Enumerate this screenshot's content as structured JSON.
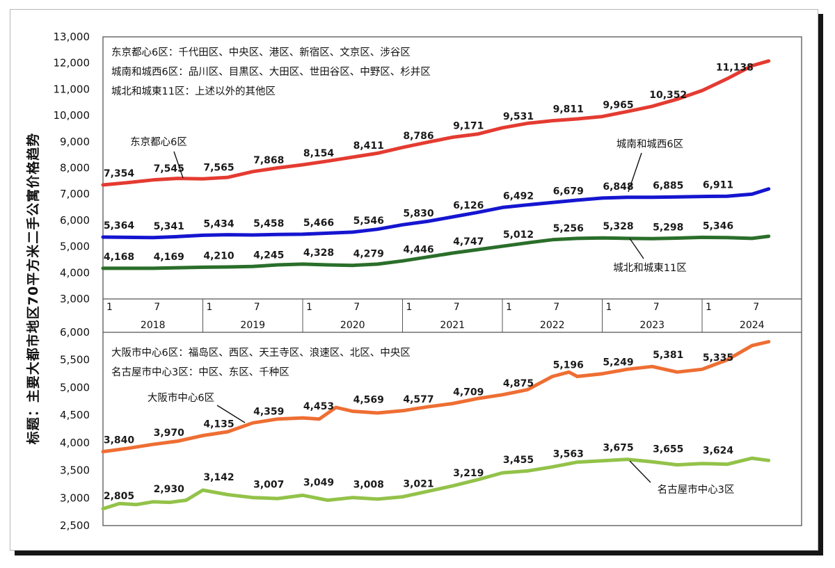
{
  "ylabel": "标题：主要大都市地区70平方米二手公寓价格趋势",
  "colors": {
    "tokyo6": "#e43b31",
    "southwest6": "#1515d0",
    "northeast11": "#2a6e2a",
    "osaka6": "#ee6e33",
    "nagoya3": "#93c249",
    "frame": "#555555"
  },
  "x_axis": {
    "years": [
      "2018",
      "2019",
      "2020",
      "2021",
      "2022",
      "2023",
      "2024"
    ],
    "month_ticks": [
      "1",
      "7"
    ]
  },
  "chart_data": [
    {
      "type": "line",
      "notes": [
        "东京都心6区：千代田区、中央区、港区、新宿区、文京区、涉谷区",
        "城南和城西6区：品川区、目黒区、大田区、世田谷区、中野区、杉并区",
        "城北和城東11区：上述以外的其他区"
      ],
      "ylim": [
        3000,
        13000
      ],
      "yticks": [
        "3,000",
        "4,000",
        "5,000",
        "6,000",
        "7,000",
        "8,000",
        "9,000",
        "10,000",
        "11,000",
        "12,000",
        "13,000"
      ],
      "x_range": [
        "2018-01",
        "2024-09"
      ],
      "series": [
        {
          "name": "东京都心6区",
          "color": "#e43b31",
          "points": [
            [
              "2018-01",
              7350
            ],
            [
              "2018-04",
              7440
            ],
            [
              "2018-07",
              7540
            ],
            [
              "2018-10",
              7600
            ],
            [
              "2019-01",
              7580
            ],
            [
              "2019-04",
              7640
            ],
            [
              "2019-07",
              7860
            ],
            [
              "2019-10",
              8000
            ],
            [
              "2020-01",
              8120
            ],
            [
              "2020-04",
              8260
            ],
            [
              "2020-07",
              8410
            ],
            [
              "2020-10",
              8560
            ],
            [
              "2021-01",
              8780
            ],
            [
              "2021-04",
              8980
            ],
            [
              "2021-07",
              9170
            ],
            [
              "2021-10",
              9290
            ],
            [
              "2022-01",
              9530
            ],
            [
              "2022-04",
              9700
            ],
            [
              "2022-07",
              9800
            ],
            [
              "2022-10",
              9870
            ],
            [
              "2023-01",
              9960
            ],
            [
              "2023-04",
              10150
            ],
            [
              "2023-07",
              10350
            ],
            [
              "2023-10",
              10620
            ],
            [
              "2024-01",
              10950
            ],
            [
              "2024-04",
              11400
            ],
            [
              "2024-07",
              11900
            ],
            [
              "2024-09",
              12080
            ]
          ],
          "labels": [
            [
              "2018-01",
              "7,354"
            ],
            [
              "2018-07",
              "7,545"
            ],
            [
              "2019-01",
              "7,565"
            ],
            [
              "2019-07",
              "7,868"
            ],
            [
              "2020-01",
              "8,154"
            ],
            [
              "2020-07",
              "8,411"
            ],
            [
              "2021-01",
              "8,786"
            ],
            [
              "2021-07",
              "9,171"
            ],
            [
              "2022-01",
              "9,531"
            ],
            [
              "2022-07",
              "9,811"
            ],
            [
              "2023-01",
              "9,965"
            ],
            [
              "2023-07",
              "10,352"
            ],
            [
              "2024-03",
              "11,138"
            ]
          ]
        },
        {
          "name": "城南和城西6区",
          "color": "#1515d0",
          "points": [
            [
              "2018-01",
              5360
            ],
            [
              "2018-04",
              5350
            ],
            [
              "2018-07",
              5340
            ],
            [
              "2018-10",
              5380
            ],
            [
              "2019-01",
              5430
            ],
            [
              "2019-04",
              5450
            ],
            [
              "2019-07",
              5440
            ],
            [
              "2019-10",
              5460
            ],
            [
              "2020-01",
              5470
            ],
            [
              "2020-04",
              5510
            ],
            [
              "2020-07",
              5550
            ],
            [
              "2020-10",
              5660
            ],
            [
              "2021-01",
              5830
            ],
            [
              "2021-04",
              5960
            ],
            [
              "2021-07",
              6130
            ],
            [
              "2021-10",
              6300
            ],
            [
              "2022-01",
              6490
            ],
            [
              "2022-04",
              6590
            ],
            [
              "2022-07",
              6680
            ],
            [
              "2022-10",
              6770
            ],
            [
              "2023-01",
              6850
            ],
            [
              "2023-04",
              6880
            ],
            [
              "2023-07",
              6880
            ],
            [
              "2023-10",
              6890
            ],
            [
              "2024-01",
              6910
            ],
            [
              "2024-04",
              6920
            ],
            [
              "2024-07",
              7000
            ],
            [
              "2024-09",
              7200
            ]
          ],
          "labels": [
            [
              "2018-01",
              "5,364"
            ],
            [
              "2018-07",
              "5,341"
            ],
            [
              "2019-01",
              "5,434"
            ],
            [
              "2019-07",
              "5,458"
            ],
            [
              "2020-01",
              "5,466"
            ],
            [
              "2020-07",
              "5,546"
            ],
            [
              "2021-01",
              "5,830"
            ],
            [
              "2021-07",
              "6,126"
            ],
            [
              "2022-01",
              "6,492"
            ],
            [
              "2022-07",
              "6,679"
            ],
            [
              "2023-01",
              "6,848"
            ],
            [
              "2023-07",
              "6,885"
            ],
            [
              "2024-01",
              "6,911"
            ]
          ]
        },
        {
          "name": "城北和城東11区",
          "color": "#2a6e2a",
          "points": [
            [
              "2018-01",
              4170
            ],
            [
              "2018-04",
              4170
            ],
            [
              "2018-07",
              4170
            ],
            [
              "2018-10",
              4190
            ],
            [
              "2019-01",
              4210
            ],
            [
              "2019-04",
              4220
            ],
            [
              "2019-07",
              4240
            ],
            [
              "2019-10",
              4300
            ],
            [
              "2020-01",
              4330
            ],
            [
              "2020-04",
              4300
            ],
            [
              "2020-07",
              4280
            ],
            [
              "2020-10",
              4330
            ],
            [
              "2021-01",
              4450
            ],
            [
              "2021-04",
              4600
            ],
            [
              "2021-07",
              4750
            ],
            [
              "2021-10",
              4880
            ],
            [
              "2022-01",
              5010
            ],
            [
              "2022-04",
              5140
            ],
            [
              "2022-07",
              5260
            ],
            [
              "2022-10",
              5310
            ],
            [
              "2023-01",
              5330
            ],
            [
              "2023-04",
              5310
            ],
            [
              "2023-07",
              5300
            ],
            [
              "2023-10",
              5320
            ],
            [
              "2024-01",
              5350
            ],
            [
              "2024-04",
              5340
            ],
            [
              "2024-07",
              5310
            ],
            [
              "2024-09",
              5390
            ]
          ],
          "labels": [
            [
              "2018-01",
              "4,168"
            ],
            [
              "2018-07",
              "4,169"
            ],
            [
              "2019-01",
              "4,210"
            ],
            [
              "2019-07",
              "4,245"
            ],
            [
              "2020-01",
              "4,328"
            ],
            [
              "2020-07",
              "4,279"
            ],
            [
              "2021-01",
              "4,446"
            ],
            [
              "2021-07",
              "4,747"
            ],
            [
              "2022-01",
              "5,012"
            ],
            [
              "2022-07",
              "5,256"
            ],
            [
              "2023-01",
              "5,328"
            ],
            [
              "2023-07",
              "5,298"
            ],
            [
              "2024-01",
              "5,346"
            ]
          ]
        }
      ]
    },
    {
      "type": "line",
      "notes": [
        "大阪市中心6区：福岛区、西区、天王寺区、浪速区、北区、中央区",
        "名古屋市中心3区：中区、东区、千种区"
      ],
      "ylim": [
        2500,
        6000
      ],
      "yticks": [
        "2,500",
        "3,000",
        "3,500",
        "4,000",
        "4,500",
        "5,000",
        "5,500",
        "6,000"
      ],
      "x_range": [
        "2018-01",
        "2024-09"
      ],
      "series": [
        {
          "name": "大阪市中心6区",
          "color": "#ee6e33",
          "points": [
            [
              "2018-01",
              3840
            ],
            [
              "2018-04",
              3900
            ],
            [
              "2018-07",
              3970
            ],
            [
              "2018-10",
              4030
            ],
            [
              "2019-01",
              4130
            ],
            [
              "2019-04",
              4200
            ],
            [
              "2019-07",
              4360
            ],
            [
              "2019-10",
              4430
            ],
            [
              "2020-01",
              4450
            ],
            [
              "2020-03",
              4430
            ],
            [
              "2020-05",
              4640
            ],
            [
              "2020-07",
              4570
            ],
            [
              "2020-10",
              4540
            ],
            [
              "2021-01",
              4580
            ],
            [
              "2021-04",
              4650
            ],
            [
              "2021-07",
              4710
            ],
            [
              "2021-10",
              4800
            ],
            [
              "2022-01",
              4870
            ],
            [
              "2022-04",
              4960
            ],
            [
              "2022-07",
              5200
            ],
            [
              "2022-09",
              5280
            ],
            [
              "2022-10",
              5200
            ],
            [
              "2023-01",
              5250
            ],
            [
              "2023-04",
              5330
            ],
            [
              "2023-07",
              5380
            ],
            [
              "2023-10",
              5280
            ],
            [
              "2024-01",
              5330
            ],
            [
              "2024-04",
              5500
            ],
            [
              "2024-07",
              5760
            ],
            [
              "2024-09",
              5830
            ]
          ],
          "labels": [
            [
              "2018-01",
              "3,840"
            ],
            [
              "2018-07",
              "3,970"
            ],
            [
              "2019-01",
              "4,135"
            ],
            [
              "2019-07",
              "4,359"
            ],
            [
              "2020-01",
              "4,453"
            ],
            [
              "2020-07",
              "4,569"
            ],
            [
              "2021-01",
              "4,577"
            ],
            [
              "2021-07",
              "4,709"
            ],
            [
              "2022-01",
              "4,875"
            ],
            [
              "2022-07",
              "5,196"
            ],
            [
              "2023-01",
              "5,249"
            ],
            [
              "2023-07",
              "5,381"
            ],
            [
              "2024-01",
              "5,335"
            ]
          ]
        },
        {
          "name": "名古屋市中心3区",
          "color": "#93c249",
          "points": [
            [
              "2018-01",
              2805
            ],
            [
              "2018-03",
              2900
            ],
            [
              "2018-05",
              2880
            ],
            [
              "2018-07",
              2930
            ],
            [
              "2018-09",
              2920
            ],
            [
              "2018-11",
              2960
            ],
            [
              "2019-01",
              3142
            ],
            [
              "2019-04",
              3060
            ],
            [
              "2019-07",
              3007
            ],
            [
              "2019-10",
              2990
            ],
            [
              "2020-01",
              3049
            ],
            [
              "2020-04",
              2960
            ],
            [
              "2020-07",
              3008
            ],
            [
              "2020-10",
              2980
            ],
            [
              "2021-01",
              3021
            ],
            [
              "2021-04",
              3120
            ],
            [
              "2021-07",
              3219
            ],
            [
              "2021-10",
              3330
            ],
            [
              "2022-01",
              3455
            ],
            [
              "2022-04",
              3490
            ],
            [
              "2022-07",
              3563
            ],
            [
              "2022-10",
              3650
            ],
            [
              "2023-01",
              3675
            ],
            [
              "2023-04",
              3700
            ],
            [
              "2023-07",
              3655
            ],
            [
              "2023-10",
              3600
            ],
            [
              "2024-01",
              3624
            ],
            [
              "2024-04",
              3610
            ],
            [
              "2024-07",
              3720
            ],
            [
              "2024-09",
              3680
            ]
          ],
          "labels": [
            [
              "2018-01",
              "2,805"
            ],
            [
              "2018-07",
              "2,930"
            ],
            [
              "2019-01",
              "3,142"
            ],
            [
              "2019-07",
              "3,007"
            ],
            [
              "2020-01",
              "3,049"
            ],
            [
              "2020-07",
              "3,008"
            ],
            [
              "2021-01",
              "3,021"
            ],
            [
              "2021-07",
              "3,219"
            ],
            [
              "2022-01",
              "3,455"
            ],
            [
              "2022-07",
              "3,563"
            ],
            [
              "2023-01",
              "3,675"
            ],
            [
              "2023-07",
              "3,655"
            ],
            [
              "2024-01",
              "3,624"
            ]
          ]
        }
      ]
    }
  ]
}
